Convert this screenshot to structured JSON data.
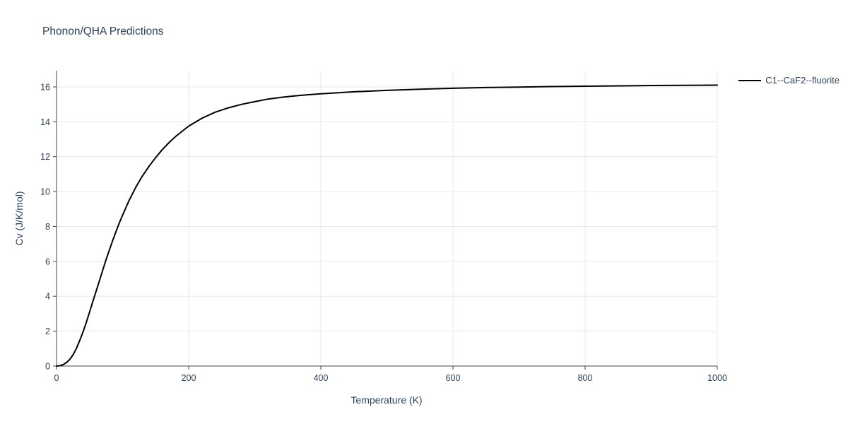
{
  "chart_data": {
    "type": "line",
    "title": "Phonon/QHA Predictions",
    "xlabel": "Temperature (K)",
    "ylabel": "Cv (J/K/mol)",
    "xlim": [
      0,
      1000
    ],
    "ylim": [
      0,
      16.93
    ],
    "x_ticks": [
      0,
      200,
      400,
      600,
      800,
      1000
    ],
    "y_ticks": [
      0,
      2,
      4,
      6,
      8,
      10,
      12,
      14,
      16
    ],
    "grid_on": true,
    "grid_color": "#e8e8e8",
    "axis_color": "#444444",
    "label_color": "#2a3f5f",
    "legend_position": "top-right-outside",
    "x": [
      0,
      5,
      10,
      15,
      20,
      25,
      30,
      35,
      40,
      45,
      50,
      55,
      60,
      65,
      70,
      75,
      80,
      85,
      90,
      95,
      100,
      110,
      120,
      130,
      140,
      150,
      160,
      170,
      180,
      190,
      200,
      220,
      240,
      260,
      280,
      300,
      320,
      340,
      360,
      380,
      400,
      450,
      500,
      550,
      600,
      650,
      700,
      750,
      800,
      850,
      900,
      950,
      1000
    ],
    "series": [
      {
        "name": "C1--CaF2--fluorite",
        "line_color": "#000000",
        "values": [
          0,
          0.02,
          0.08,
          0.2,
          0.38,
          0.65,
          1.0,
          1.45,
          1.95,
          2.5,
          3.1,
          3.7,
          4.3,
          4.9,
          5.5,
          6.1,
          6.65,
          7.2,
          7.7,
          8.2,
          8.65,
          9.5,
          10.25,
          10.9,
          11.45,
          11.95,
          12.4,
          12.8,
          13.15,
          13.45,
          13.75,
          14.2,
          14.55,
          14.8,
          15.0,
          15.15,
          15.3,
          15.4,
          15.48,
          15.55,
          15.6,
          15.72,
          15.8,
          15.87,
          15.92,
          15.96,
          15.99,
          16.02,
          16.04,
          16.06,
          16.08,
          16.09,
          16.1
        ]
      }
    ]
  }
}
